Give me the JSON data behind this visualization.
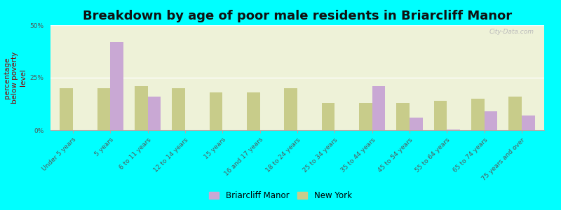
{
  "title": "Breakdown by age of poor male residents in Briarcliff Manor",
  "ylabel": "percentage\nbelow poverty\nlevel",
  "categories": [
    "Under 5 years",
    "5 years",
    "6 to 11 years",
    "12 to 14 years",
    "15 years",
    "16 and 17 years",
    "18 to 24 years",
    "25 to 34 years",
    "35 to 44 years",
    "45 to 54 years",
    "55 to 64 years",
    "65 to 74 years",
    "75 years and over"
  ],
  "briarcliff_values": [
    0,
    42,
    16,
    0,
    0,
    0,
    0,
    0,
    21,
    6,
    0.5,
    9,
    7
  ],
  "newyork_values": [
    20,
    20,
    21,
    20,
    18,
    18,
    20,
    13,
    13,
    13,
    14,
    15,
    16
  ],
  "briarcliff_color": "#c9a8d4",
  "newyork_color": "#c8cc8a",
  "background_color": "#00ffff",
  "plot_bg_color": "#eef2d8",
  "ylim": [
    0,
    50
  ],
  "yticks": [
    0,
    25,
    50
  ],
  "ytick_labels": [
    "0%",
    "25%",
    "50%"
  ],
  "legend_briarcliff": "Briarcliff Manor",
  "legend_newyork": "New York",
  "bar_width": 0.35,
  "title_fontsize": 13,
  "axis_label_fontsize": 7.5,
  "tick_fontsize": 6.5,
  "legend_fontsize": 8.5
}
